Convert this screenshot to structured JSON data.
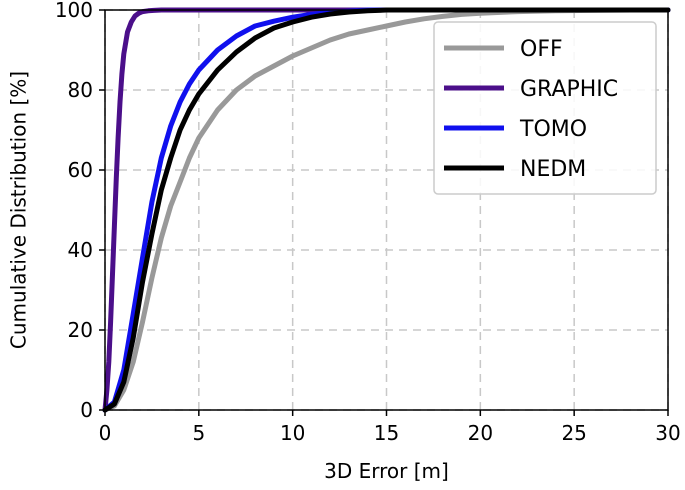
{
  "chart_data": {
    "type": "line",
    "title": "",
    "xlabel": "3D Error [m]",
    "ylabel": "Cumulative Distribution [%]",
    "xlim": [
      0,
      30
    ],
    "ylim": [
      0,
      100
    ],
    "xticks": [
      0,
      5,
      10,
      15,
      20,
      25,
      30
    ],
    "yticks": [
      0,
      20,
      40,
      60,
      80,
      100
    ],
    "grid": true,
    "legend_position": "top-right",
    "series": [
      {
        "name": "OFF",
        "color": "#999999",
        "x": [
          0,
          0.5,
          1,
          1.5,
          2,
          2.5,
          3,
          3.5,
          4,
          4.5,
          5,
          6,
          7,
          8,
          9,
          10,
          11,
          12,
          13,
          14,
          15,
          16,
          17,
          18,
          19,
          20,
          22,
          24,
          26,
          28,
          30
        ],
        "y": [
          0,
          1,
          5,
          12,
          22,
          33,
          43,
          51,
          57,
          63,
          68,
          75,
          80,
          83.5,
          86,
          88.5,
          90.5,
          92.5,
          94,
          95,
          96,
          97,
          97.8,
          98.4,
          98.9,
          99.2,
          99.6,
          99.8,
          99.9,
          100,
          100
        ]
      },
      {
        "name": "GRAPHIC",
        "color": "#4b0f8a",
        "x": [
          0,
          0.1,
          0.2,
          0.3,
          0.4,
          0.5,
          0.6,
          0.7,
          0.8,
          0.9,
          1.0,
          1.2,
          1.4,
          1.6,
          1.8,
          2.0,
          2.3,
          2.6,
          3,
          30
        ],
        "y": [
          0,
          5,
          12,
          22,
          34,
          46,
          58,
          68,
          77,
          84,
          89,
          94.5,
          97,
          98.5,
          99.2,
          99.6,
          99.8,
          99.9,
          100,
          100
        ]
      },
      {
        "name": "TOMO",
        "color": "#1010ee",
        "x": [
          0,
          0.5,
          1,
          1.5,
          2,
          2.5,
          3,
          3.5,
          4,
          4.5,
          5,
          5.5,
          6,
          7,
          8,
          9,
          10,
          11,
          12,
          13,
          14,
          30
        ],
        "y": [
          0,
          2,
          10,
          24,
          38,
          52,
          63,
          71,
          77,
          81.5,
          85,
          87.5,
          90,
          93.5,
          96,
          97.2,
          98.2,
          98.9,
          99.4,
          99.7,
          100,
          100
        ]
      },
      {
        "name": "NEDM",
        "color": "#000000",
        "x": [
          0,
          0.5,
          1,
          1.5,
          2,
          2.5,
          3,
          3.5,
          4,
          4.5,
          5,
          5.5,
          6,
          7,
          8,
          9,
          10,
          11,
          12,
          13,
          14,
          15,
          30
        ],
        "y": [
          0,
          1.5,
          7,
          18,
          32,
          44,
          55,
          63,
          70,
          75,
          79,
          82,
          85,
          89.5,
          93,
          95.5,
          97,
          98.2,
          99,
          99.5,
          99.8,
          100,
          100
        ]
      }
    ]
  }
}
